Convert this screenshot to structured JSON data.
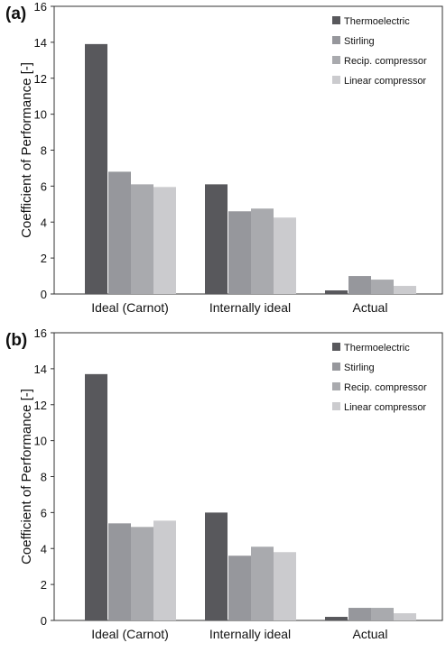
{
  "chart_data": [
    {
      "type": "bar",
      "panel_label": "(a)",
      "title": "",
      "xlabel": "",
      "ylabel": "Coefficient of Performance [-]",
      "categories": [
        "Ideal (Carnot)",
        "Internally ideal",
        "Actual"
      ],
      "ylim": [
        0,
        16
      ],
      "yticks": [
        0,
        2,
        4,
        6,
        8,
        10,
        12,
        14,
        16
      ],
      "grid": false,
      "legend_position": "top-right",
      "series": [
        {
          "name": "Thermoelectric",
          "color": "#58585c",
          "values": [
            13.9,
            6.1,
            0.2
          ]
        },
        {
          "name": "Stirling",
          "color": "#96979c",
          "values": [
            6.8,
            4.6,
            1.0
          ]
        },
        {
          "name": "Recip. compressor",
          "color": "#a9aaae",
          "values": [
            6.1,
            4.75,
            0.8
          ]
        },
        {
          "name": "Linear compressor",
          "color": "#cbcbce",
          "values": [
            5.95,
            4.25,
            0.45
          ]
        }
      ]
    },
    {
      "type": "bar",
      "panel_label": "(b)",
      "title": "",
      "xlabel": "",
      "ylabel": "Coefficient of Performance [-]",
      "categories": [
        "Ideal (Carnot)",
        "Internally ideal",
        "Actual"
      ],
      "ylim": [
        0,
        16
      ],
      "yticks": [
        0,
        2,
        4,
        6,
        8,
        10,
        12,
        14,
        16
      ],
      "grid": false,
      "legend_position": "top-right",
      "series": [
        {
          "name": "Thermoelectric",
          "color": "#58585c",
          "values": [
            13.7,
            6.0,
            0.2
          ]
        },
        {
          "name": "Stirling",
          "color": "#96979c",
          "values": [
            5.4,
            3.6,
            0.7
          ]
        },
        {
          "name": "Recip. compressor",
          "color": "#a9aaae",
          "values": [
            5.2,
            4.1,
            0.7
          ]
        },
        {
          "name": "Linear compressor",
          "color": "#cbcbce",
          "values": [
            5.55,
            3.8,
            0.4
          ]
        }
      ]
    }
  ]
}
